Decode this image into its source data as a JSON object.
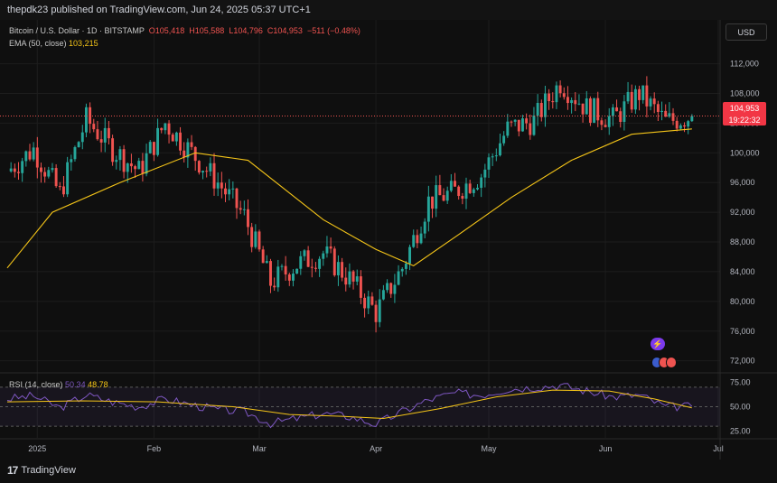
{
  "header": {
    "published": "thepdk23 published on TradingView.com, Jun 24, 2025 05:37 UTC+1"
  },
  "legend": {
    "symbol": "Bitcoin / U.S. Dollar · 1D · BITSTAMP",
    "open": "O105,418",
    "high": "H105,588",
    "low": "L104,796",
    "close": "C104,953",
    "change": "−511 (−0.48%)",
    "ema_label": "EMA (50, close)",
    "ema_value": "103,215",
    "rsi_label": "RSI (14, close)",
    "rsi_value": "50.34",
    "rsi_ma_value": "48.78"
  },
  "currency_button": "USD",
  "price_tag": {
    "price": "104,953",
    "countdown": "19:22:32"
  },
  "footer": {
    "brand": "TradingView"
  },
  "icons": {
    "bolt": "lightning-icon",
    "flags": "us-events-icon",
    "logo": "tradingview-logo-icon"
  },
  "colors": {
    "up": "#26a69a",
    "down": "#ef5350",
    "ema": "#f5c518",
    "rsi": "#7e57c2",
    "rsi_ma": "#f5c518",
    "price_tag": "#f23645"
  },
  "chart_data": {
    "type": "candlestick",
    "title": "Bitcoin / U.S. Dollar · 1D · BITSTAMP",
    "ylim": [
      70500,
      114500
    ],
    "y_ticks": [
      "112,000",
      "108,000",
      "104,000",
      "100,000",
      "96,000",
      "92,000",
      "88,000",
      "84,000",
      "80,000",
      "76,000",
      "72,000"
    ],
    "x_ticks": [
      "2025",
      "Feb",
      "Mar",
      "Apr",
      "May",
      "Jun",
      "Jul"
    ],
    "x_tick_days": [
      8,
      39,
      67,
      98,
      128,
      159,
      189
    ],
    "last_price_line": 104953,
    "weekly_anchors": [
      [
        0,
        97500
      ],
      [
        7,
        100500
      ],
      [
        14,
        94500
      ],
      [
        21,
        104500
      ],
      [
        28,
        100500
      ],
      [
        35,
        97500
      ],
      [
        42,
        104000
      ],
      [
        49,
        100000
      ],
      [
        56,
        96000
      ],
      [
        63,
        91500
      ],
      [
        70,
        82500
      ],
      [
        77,
        85000
      ],
      [
        84,
        86500
      ],
      [
        91,
        83000
      ],
      [
        98,
        78500
      ],
      [
        105,
        84500
      ],
      [
        112,
        93500
      ],
      [
        119,
        94800
      ],
      [
        126,
        97000
      ],
      [
        133,
        103200
      ],
      [
        140,
        104300
      ],
      [
        147,
        109500
      ],
      [
        154,
        106000
      ],
      [
        161,
        104500
      ],
      [
        168,
        108000
      ],
      [
        175,
        104200
      ],
      [
        182,
        104953
      ]
    ],
    "ema": {
      "label": "EMA (50, close)",
      "points": [
        [
          0,
          84500
        ],
        [
          12,
          92000
        ],
        [
          30,
          96000
        ],
        [
          50,
          100000
        ],
        [
          64,
          99000
        ],
        [
          84,
          91000
        ],
        [
          98,
          87000
        ],
        [
          108,
          84800
        ],
        [
          120,
          89000
        ],
        [
          134,
          94000
        ],
        [
          150,
          99000
        ],
        [
          166,
          102500
        ],
        [
          182,
          103215
        ]
      ]
    },
    "rsi": {
      "label": "RSI (14, close)",
      "ylim": [
        20,
        80
      ],
      "levels": [
        70,
        50,
        30
      ],
      "tick_labels": [
        "75.00",
        "50.00",
        "25.00"
      ],
      "points": [
        [
          0,
          58
        ],
        [
          7,
          61
        ],
        [
          14,
          49
        ],
        [
          21,
          62
        ],
        [
          28,
          55
        ],
        [
          35,
          50
        ],
        [
          42,
          58
        ],
        [
          49,
          52
        ],
        [
          56,
          47
        ],
        [
          63,
          45
        ],
        [
          70,
          33
        ],
        [
          77,
          38
        ],
        [
          84,
          43
        ],
        [
          91,
          40
        ],
        [
          98,
          32
        ],
        [
          105,
          45
        ],
        [
          112,
          57
        ],
        [
          119,
          64
        ],
        [
          126,
          62
        ],
        [
          133,
          68
        ],
        [
          140,
          70
        ],
        [
          147,
          72
        ],
        [
          154,
          66
        ],
        [
          161,
          60
        ],
        [
          168,
          62
        ],
        [
          175,
          50
        ],
        [
          182,
          50.34
        ]
      ],
      "ma_points": [
        [
          0,
          55
        ],
        [
          20,
          56
        ],
        [
          40,
          55
        ],
        [
          60,
          50
        ],
        [
          75,
          42
        ],
        [
          90,
          40
        ],
        [
          100,
          38
        ],
        [
          115,
          48
        ],
        [
          130,
          60
        ],
        [
          145,
          67
        ],
        [
          160,
          66
        ],
        [
          172,
          58
        ],
        [
          182,
          48.78
        ]
      ]
    }
  }
}
